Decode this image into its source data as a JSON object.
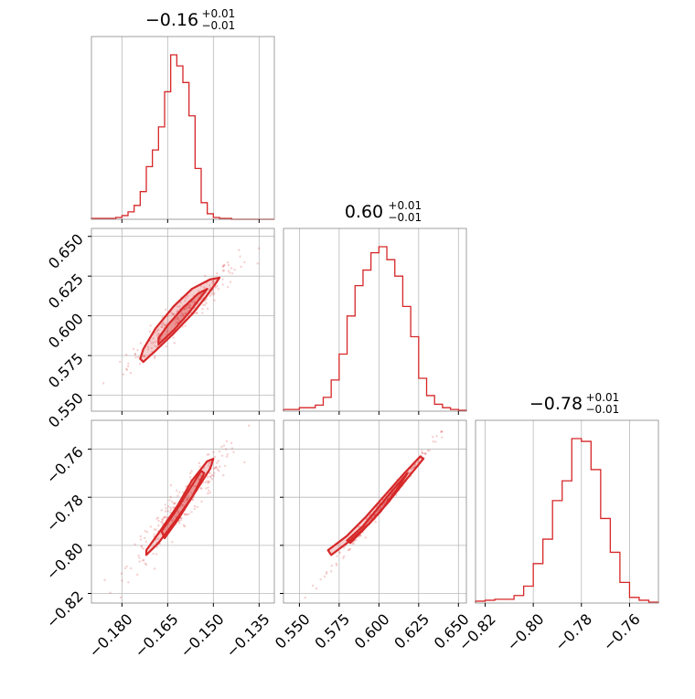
{
  "chart_data": {
    "type": "corner",
    "color": "#d62728",
    "parameters": [
      {
        "title_value": "−0.16",
        "title_plus": "+0.01",
        "title_minus": "−0.01",
        "range": [
          -0.19,
          -0.13
        ]
      },
      {
        "title_value": "0.60",
        "title_plus": "+0.01",
        "title_minus": "−0.01",
        "range": [
          0.54,
          0.655
        ]
      },
      {
        "title_value": "−0.78",
        "title_plus": "+0.01",
        "title_minus": "−0.01",
        "range": [
          -0.824,
          -0.748
        ]
      }
    ],
    "bottom_tick_labels": [
      [
        "−0.180",
        "−0.165",
        "−0.150",
        "−0.135"
      ],
      [
        "0.550",
        "0.575",
        "0.600",
        "0.625",
        "0.650"
      ],
      [
        "−0.82",
        "−0.80",
        "−0.78",
        "−0.76"
      ]
    ],
    "left_tick_labels": [
      [
        "0.550",
        "0.575",
        "0.600",
        "0.625",
        "0.650"
      ],
      [
        "−0.82",
        "−0.80",
        "−0.78",
        "−0.76"
      ]
    ],
    "tick_values": [
      [
        -0.18,
        -0.165,
        -0.15,
        -0.135
      ],
      [
        0.55,
        0.575,
        0.6,
        0.625,
        0.65
      ],
      [
        -0.82,
        -0.8,
        -0.78,
        -0.76
      ]
    ],
    "histograms": [
      {
        "param": 0,
        "bins": [
          -0.19,
          -0.188,
          -0.186,
          -0.184,
          -0.182,
          -0.18,
          -0.178,
          -0.176,
          -0.174,
          -0.172,
          -0.17,
          -0.168,
          -0.166,
          -0.164,
          -0.162,
          -0.16,
          -0.158,
          -0.156,
          -0.154,
          -0.152,
          -0.15,
          -0.148,
          -0.146,
          -0.144,
          -0.142,
          -0.14,
          -0.138,
          -0.136,
          -0.134,
          -0.132,
          -0.13
        ],
        "counts": [
          1,
          1,
          1,
          1,
          2,
          4,
          8,
          15,
          30,
          57,
          75,
          100,
          138,
          178,
          166,
          148,
          112,
          55,
          18,
          6,
          2,
          1,
          1,
          0,
          0,
          0,
          0,
          0,
          0,
          0
        ]
      },
      {
        "param": 1,
        "bins": [
          0.54,
          0.545,
          0.55,
          0.555,
          0.56,
          0.565,
          0.57,
          0.575,
          0.58,
          0.585,
          0.59,
          0.595,
          0.6,
          0.605,
          0.61,
          0.615,
          0.62,
          0.625,
          0.63,
          0.635,
          0.64,
          0.645,
          0.65,
          0.655
        ],
        "counts": [
          2,
          2,
          4,
          4,
          7,
          16,
          36,
          66,
          110,
          145,
          163,
          183,
          190,
          175,
          156,
          121,
          86,
          38,
          18,
          8,
          4,
          2,
          1
        ]
      },
      {
        "param": 2,
        "bins": [
          -0.824,
          -0.82,
          -0.816,
          -0.812,
          -0.808,
          -0.804,
          -0.8,
          -0.796,
          -0.792,
          -0.788,
          -0.784,
          -0.78,
          -0.776,
          -0.772,
          -0.768,
          -0.764,
          -0.76,
          -0.756,
          -0.752,
          -0.748
        ],
        "counts": [
          2,
          3,
          4,
          4,
          8,
          18,
          42,
          68,
          109,
          130,
          175,
          172,
          142,
          90,
          54,
          22,
          6,
          3,
          1
        ]
      }
    ],
    "contours": [
      {
        "x_param": 0,
        "y_param": 1,
        "outer": [
          [
            -0.173,
            0.571
          ],
          [
            -0.169,
            0.578
          ],
          [
            -0.163,
            0.589
          ],
          [
            -0.157,
            0.601
          ],
          [
            -0.152,
            0.613
          ],
          [
            -0.149,
            0.621
          ],
          [
            -0.148,
            0.624
          ],
          [
            -0.151,
            0.623
          ],
          [
            -0.157,
            0.617
          ],
          [
            -0.163,
            0.606
          ],
          [
            -0.169,
            0.592
          ],
          [
            -0.173,
            0.579
          ],
          [
            -0.174,
            0.573
          ]
        ],
        "inner": [
          [
            -0.168,
            0.582
          ],
          [
            -0.163,
            0.591
          ],
          [
            -0.158,
            0.602
          ],
          [
            -0.154,
            0.612
          ],
          [
            -0.152,
            0.617
          ],
          [
            -0.155,
            0.614
          ],
          [
            -0.16,
            0.605
          ],
          [
            -0.165,
            0.594
          ],
          [
            -0.168,
            0.586
          ]
        ],
        "center": [
          -0.16,
          0.601
        ],
        "sigma": [
          0.0072,
          0.013
        ],
        "corr": 0.95
      },
      {
        "x_param": 0,
        "y_param": 2,
        "outer": [
          [
            -0.172,
            -0.802
          ],
          [
            -0.168,
            -0.795
          ],
          [
            -0.162,
            -0.784
          ],
          [
            -0.157,
            -0.773
          ],
          [
            -0.152,
            -0.765
          ],
          [
            -0.15,
            -0.764
          ],
          [
            -0.151,
            -0.768
          ],
          [
            -0.156,
            -0.778
          ],
          [
            -0.162,
            -0.789
          ],
          [
            -0.168,
            -0.799
          ],
          [
            -0.172,
            -0.804
          ]
        ],
        "inner": [
          [
            -0.167,
            -0.794
          ],
          [
            -0.163,
            -0.787
          ],
          [
            -0.158,
            -0.777
          ],
          [
            -0.154,
            -0.769
          ],
          [
            -0.153,
            -0.77
          ],
          [
            -0.157,
            -0.78
          ],
          [
            -0.162,
            -0.79
          ],
          [
            -0.166,
            -0.797
          ]
        ],
        "center": [
          -0.16,
          -0.783
        ],
        "sigma": [
          0.0072,
          0.0105
        ],
        "corr": 0.95
      },
      {
        "x_param": 1,
        "y_param": 2,
        "outer": [
          [
            0.568,
            -0.802
          ],
          [
            0.58,
            -0.796
          ],
          [
            0.592,
            -0.788
          ],
          [
            0.604,
            -0.779
          ],
          [
            0.616,
            -0.77
          ],
          [
            0.626,
            -0.763
          ],
          [
            0.628,
            -0.764
          ],
          [
            0.618,
            -0.772
          ],
          [
            0.606,
            -0.782
          ],
          [
            0.594,
            -0.791
          ],
          [
            0.582,
            -0.798
          ],
          [
            0.57,
            -0.804
          ]
        ],
        "inner": [
          [
            0.58,
            -0.798
          ],
          [
            0.59,
            -0.792
          ],
          [
            0.6,
            -0.784
          ],
          [
            0.61,
            -0.776
          ],
          [
            0.618,
            -0.77
          ],
          [
            0.611,
            -0.777
          ],
          [
            0.601,
            -0.786
          ],
          [
            0.591,
            -0.793
          ],
          [
            0.582,
            -0.799
          ]
        ],
        "center": [
          0.601,
          -0.784
        ],
        "sigma": [
          0.013,
          0.0105
        ],
        "corr": 0.995
      }
    ]
  }
}
